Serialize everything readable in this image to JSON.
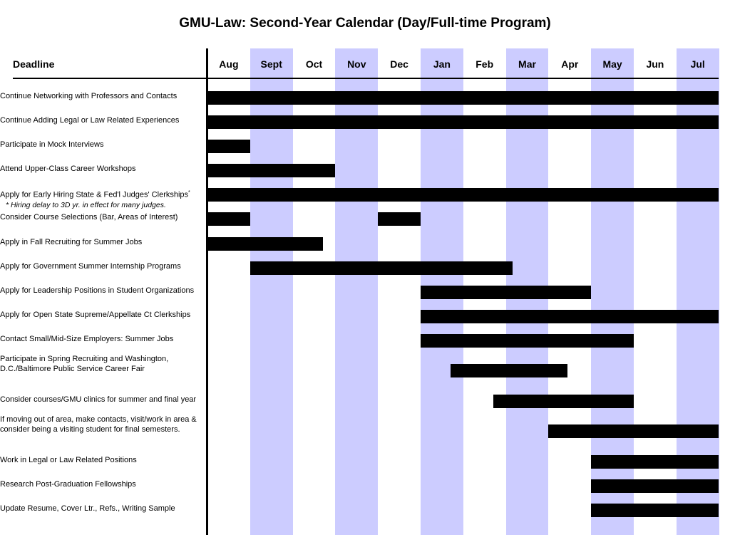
{
  "title": "GMU-Law:  Second-Year Calendar (Day/Full-time Program)",
  "deadline_header": "Deadline",
  "months": [
    "Aug",
    "Sept",
    "Oct",
    "Nov",
    "Dec",
    "Jan",
    "Feb",
    "Mar",
    "Apr",
    "May",
    "Jun",
    "Jul"
  ],
  "shaded_months": [
    "Sept",
    "Nov",
    "Jan",
    "Mar",
    "May",
    "Jul"
  ],
  "colors": {
    "shade": "#ccccff",
    "bar": "#000000",
    "background": "#ffffff"
  },
  "tasks": [
    {
      "label": "Continue Networking with Professors and Contacts",
      "bars": [
        [
          0,
          12
        ]
      ]
    },
    {
      "label": "Continue Adding Legal or Law Related Experiences",
      "bars": [
        [
          0,
          12
        ]
      ]
    },
    {
      "label": "Participate in Mock Interviews",
      "bars": [
        [
          0,
          1
        ]
      ]
    },
    {
      "label": "Attend Upper-Class Career Workshops",
      "bars": [
        [
          0,
          3
        ]
      ]
    },
    {
      "label": "Apply for Early Hiring State & Fed'l Judges' Clerkships",
      "label_mark": "*",
      "note": "* Hiring delay to 3D yr. in effect for many judges.",
      "bars": [
        [
          0,
          12
        ]
      ]
    },
    {
      "label": "Consider Course Selections (Bar, Areas of Interest)",
      "bars": [
        [
          0,
          1
        ],
        [
          4,
          5
        ]
      ]
    },
    {
      "label": "Apply in Fall Recruiting for Summer Jobs",
      "bars": [
        [
          0,
          2.7
        ]
      ]
    },
    {
      "label": "Apply for Government Summer Internship Programs",
      "bars": [
        [
          1,
          7.15
        ]
      ]
    },
    {
      "label": "Apply for Leadership Positions in Student Organizations",
      "bars": [
        [
          5,
          9
        ]
      ]
    },
    {
      "label": "Apply for Open State Supreme/Appellate Ct Clerkships",
      "bars": [
        [
          5,
          12
        ]
      ]
    },
    {
      "label": "Contact Small/Mid-Size Employers: Summer Jobs",
      "bars": [
        [
          5,
          10
        ]
      ]
    },
    {
      "label": "Participate in Spring Recruiting and Washington,",
      "label2": "D.C./Baltimore Public Service Career Fair",
      "bars": [
        [
          5.7,
          8.45
        ]
      ]
    },
    {
      "label": "Consider courses/GMU clinics for summer and final year",
      "bars": [
        [
          6.7,
          10
        ]
      ]
    },
    {
      "label": "If moving out of area, make contacts, visit/work in area &",
      "label2": "consider being a visiting student for final semesters.",
      "bars": [
        [
          8,
          12
        ]
      ]
    },
    {
      "label": "Work in Legal or Law Related Positions",
      "bars": [
        [
          9,
          12
        ]
      ]
    },
    {
      "label": "Research Post-Graduation Fellowships",
      "bars": [
        [
          9,
          12
        ]
      ]
    },
    {
      "label": "Update Resume, Cover Ltr., Refs., Writing Sample",
      "bars": [
        [
          9,
          12
        ]
      ]
    }
  ]
}
